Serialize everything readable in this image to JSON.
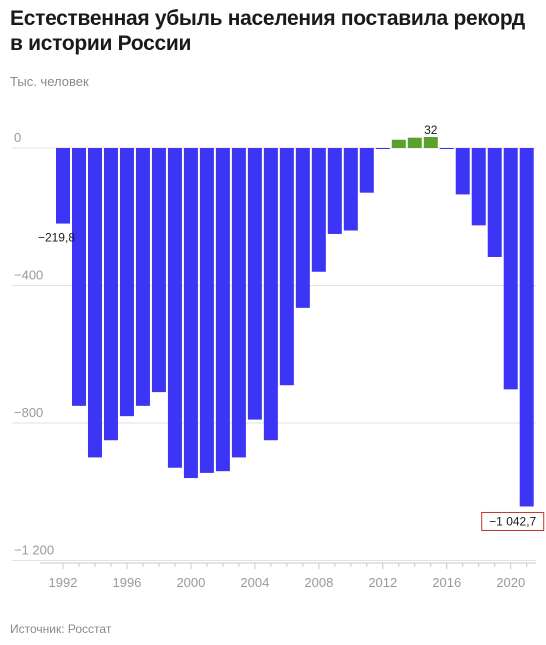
{
  "header": {
    "title": "Естественная убыль населения поставила рекорд в истории России",
    "subtitle": "Тыс. человек"
  },
  "footer": {
    "source": "Источник: Росстат"
  },
  "colors": {
    "negative": "#3d35f5",
    "positive": "#5aa02c",
    "grid": "#e2e2e2",
    "highlight_box": "#c0392b"
  },
  "chart_data": {
    "type": "bar",
    "title": "Естественная убыль населения поставила рекорд в истории России",
    "ylabel": "Тыс. человек",
    "ylim": [
      -1200,
      50
    ],
    "yticks": [
      0,
      -400,
      -800,
      -1200
    ],
    "ytick_labels": [
      "0",
      "−400",
      "−800",
      "−1 200"
    ],
    "xtick_labels": [
      "1992",
      "1996",
      "2000",
      "2004",
      "2008",
      "2012",
      "2016",
      "2020"
    ],
    "categories": [
      "1992",
      "1993",
      "1994",
      "1995",
      "1996",
      "1997",
      "1998",
      "1999",
      "2000",
      "2001",
      "2002",
      "2003",
      "2004",
      "2005",
      "2006",
      "2007",
      "2008",
      "2009",
      "2010",
      "2011",
      "2012",
      "2013",
      "2014",
      "2015",
      "2016",
      "2017",
      "2018",
      "2019",
      "2020",
      "2021"
    ],
    "values": [
      -219.8,
      -750,
      -900,
      -850,
      -780,
      -750,
      -710,
      -930,
      -960,
      -945,
      -940,
      -900,
      -790,
      -850,
      -690,
      -465,
      -360,
      -250,
      -240,
      -130,
      -2.6,
      24,
      30,
      32,
      -2.3,
      -135,
      -225,
      -317,
      -702,
      -1042.7
    ],
    "data_labels": [
      {
        "category": "1992",
        "text": "−219,8"
      },
      {
        "category": "2015",
        "text": "32"
      },
      {
        "category": "2021",
        "text": "−1 042,7"
      }
    ],
    "grid": true
  }
}
